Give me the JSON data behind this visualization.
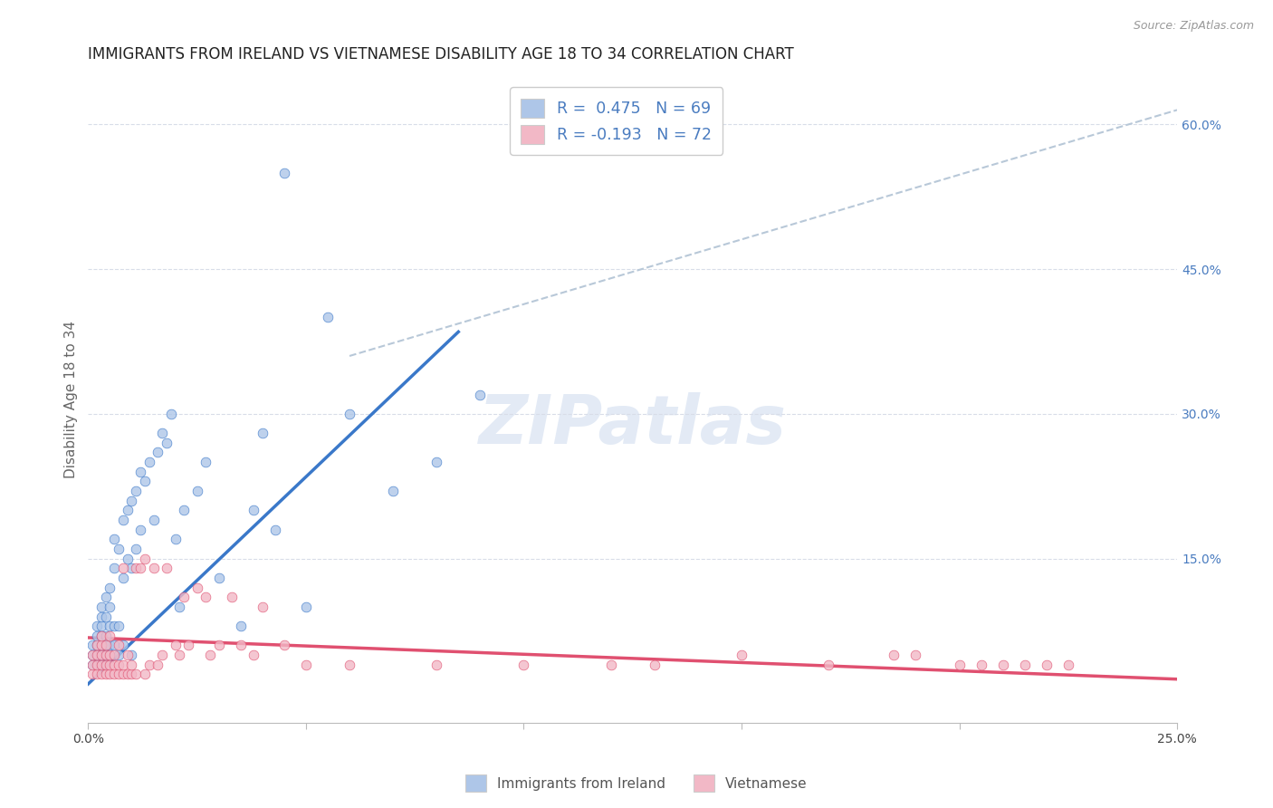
{
  "title": "IMMIGRANTS FROM IRELAND VS VIETNAMESE DISABILITY AGE 18 TO 34 CORRELATION CHART",
  "source": "Source: ZipAtlas.com",
  "ylabel": "Disability Age 18 to 34",
  "watermark": "ZIPatlas",
  "legend_entry1": "R =  0.475   N = 69",
  "legend_entry2": "R = -0.193   N = 72",
  "legend_label1": "Immigrants from Ireland",
  "legend_label2": "Vietnamese",
  "color_ireland": "#aec6e8",
  "color_vietnamese": "#f2b8c6",
  "line_color_ireland": "#3a78c9",
  "line_color_vietnamese": "#e05070",
  "dashed_line_color": "#b8c8d8",
  "title_fontsize": 12,
  "axis_label_fontsize": 11,
  "tick_fontsize": 10,
  "xlim": [
    0.0,
    0.25
  ],
  "ylim": [
    -0.02,
    0.65
  ],
  "xticks": [
    0.0,
    0.05,
    0.1,
    0.15,
    0.2,
    0.25
  ],
  "xtick_labels": [
    "0.0%",
    "",
    "",
    "",
    "",
    "25.0%"
  ],
  "yticks_right": [
    0.0,
    0.15,
    0.3,
    0.45,
    0.6
  ],
  "ytick_labels_right": [
    "",
    "15.0%",
    "30.0%",
    "45.0%",
    "60.0%"
  ],
  "ireland_x": [
    0.001,
    0.001,
    0.001,
    0.002,
    0.002,
    0.002,
    0.002,
    0.002,
    0.003,
    0.003,
    0.003,
    0.003,
    0.003,
    0.003,
    0.003,
    0.004,
    0.004,
    0.004,
    0.004,
    0.004,
    0.004,
    0.005,
    0.005,
    0.005,
    0.005,
    0.005,
    0.006,
    0.006,
    0.006,
    0.006,
    0.007,
    0.007,
    0.007,
    0.008,
    0.008,
    0.008,
    0.009,
    0.009,
    0.01,
    0.01,
    0.01,
    0.011,
    0.011,
    0.012,
    0.012,
    0.013,
    0.014,
    0.015,
    0.016,
    0.017,
    0.018,
    0.019,
    0.02,
    0.021,
    0.022,
    0.025,
    0.027,
    0.03,
    0.035,
    0.038,
    0.04,
    0.043,
    0.045,
    0.05,
    0.055,
    0.06,
    0.07,
    0.08,
    0.09
  ],
  "ireland_y": [
    0.04,
    0.05,
    0.06,
    0.04,
    0.05,
    0.06,
    0.07,
    0.08,
    0.04,
    0.05,
    0.06,
    0.07,
    0.08,
    0.09,
    0.1,
    0.04,
    0.05,
    0.06,
    0.07,
    0.09,
    0.11,
    0.05,
    0.06,
    0.08,
    0.1,
    0.12,
    0.06,
    0.08,
    0.14,
    0.17,
    0.05,
    0.08,
    0.16,
    0.06,
    0.13,
    0.19,
    0.15,
    0.2,
    0.05,
    0.14,
    0.21,
    0.16,
    0.22,
    0.18,
    0.24,
    0.23,
    0.25,
    0.19,
    0.26,
    0.28,
    0.27,
    0.3,
    0.17,
    0.1,
    0.2,
    0.22,
    0.25,
    0.13,
    0.08,
    0.2,
    0.28,
    0.18,
    0.55,
    0.1,
    0.4,
    0.3,
    0.22,
    0.25,
    0.32
  ],
  "vietnamese_x": [
    0.001,
    0.001,
    0.001,
    0.002,
    0.002,
    0.002,
    0.002,
    0.003,
    0.003,
    0.003,
    0.003,
    0.003,
    0.004,
    0.004,
    0.004,
    0.004,
    0.005,
    0.005,
    0.005,
    0.005,
    0.006,
    0.006,
    0.006,
    0.007,
    0.007,
    0.007,
    0.008,
    0.008,
    0.008,
    0.009,
    0.009,
    0.01,
    0.01,
    0.011,
    0.011,
    0.012,
    0.013,
    0.013,
    0.014,
    0.015,
    0.016,
    0.017,
    0.018,
    0.02,
    0.021,
    0.022,
    0.023,
    0.025,
    0.027,
    0.028,
    0.03,
    0.033,
    0.035,
    0.038,
    0.04,
    0.045,
    0.05,
    0.06,
    0.08,
    0.1,
    0.12,
    0.13,
    0.15,
    0.17,
    0.185,
    0.19,
    0.2,
    0.205,
    0.21,
    0.215,
    0.22,
    0.225
  ],
  "vietnamese_y": [
    0.03,
    0.04,
    0.05,
    0.03,
    0.04,
    0.05,
    0.06,
    0.03,
    0.04,
    0.05,
    0.06,
    0.07,
    0.03,
    0.04,
    0.05,
    0.06,
    0.03,
    0.04,
    0.05,
    0.07,
    0.03,
    0.04,
    0.05,
    0.03,
    0.04,
    0.06,
    0.03,
    0.04,
    0.14,
    0.03,
    0.05,
    0.03,
    0.04,
    0.03,
    0.14,
    0.14,
    0.03,
    0.15,
    0.04,
    0.14,
    0.04,
    0.05,
    0.14,
    0.06,
    0.05,
    0.11,
    0.06,
    0.12,
    0.11,
    0.05,
    0.06,
    0.11,
    0.06,
    0.05,
    0.1,
    0.06,
    0.04,
    0.04,
    0.04,
    0.04,
    0.04,
    0.04,
    0.05,
    0.04,
    0.05,
    0.05,
    0.04,
    0.04,
    0.04,
    0.04,
    0.04,
    0.04
  ],
  "ireland_trend_x": [
    0.0,
    0.085
  ],
  "ireland_trend_y": [
    0.02,
    0.385
  ],
  "vietnamese_trend_x": [
    0.0,
    0.25
  ],
  "vietnamese_trend_y": [
    0.068,
    0.025
  ],
  "diag_line_x": [
    0.06,
    0.25
  ],
  "diag_line_y": [
    0.36,
    0.615
  ],
  "background_color": "#ffffff",
  "grid_color": "#d8dde8",
  "right_axis_color": "#4a7cc0",
  "watermark_color": "#ccdaee",
  "watermark_fontsize": 54,
  "watermark_alpha": 0.55
}
